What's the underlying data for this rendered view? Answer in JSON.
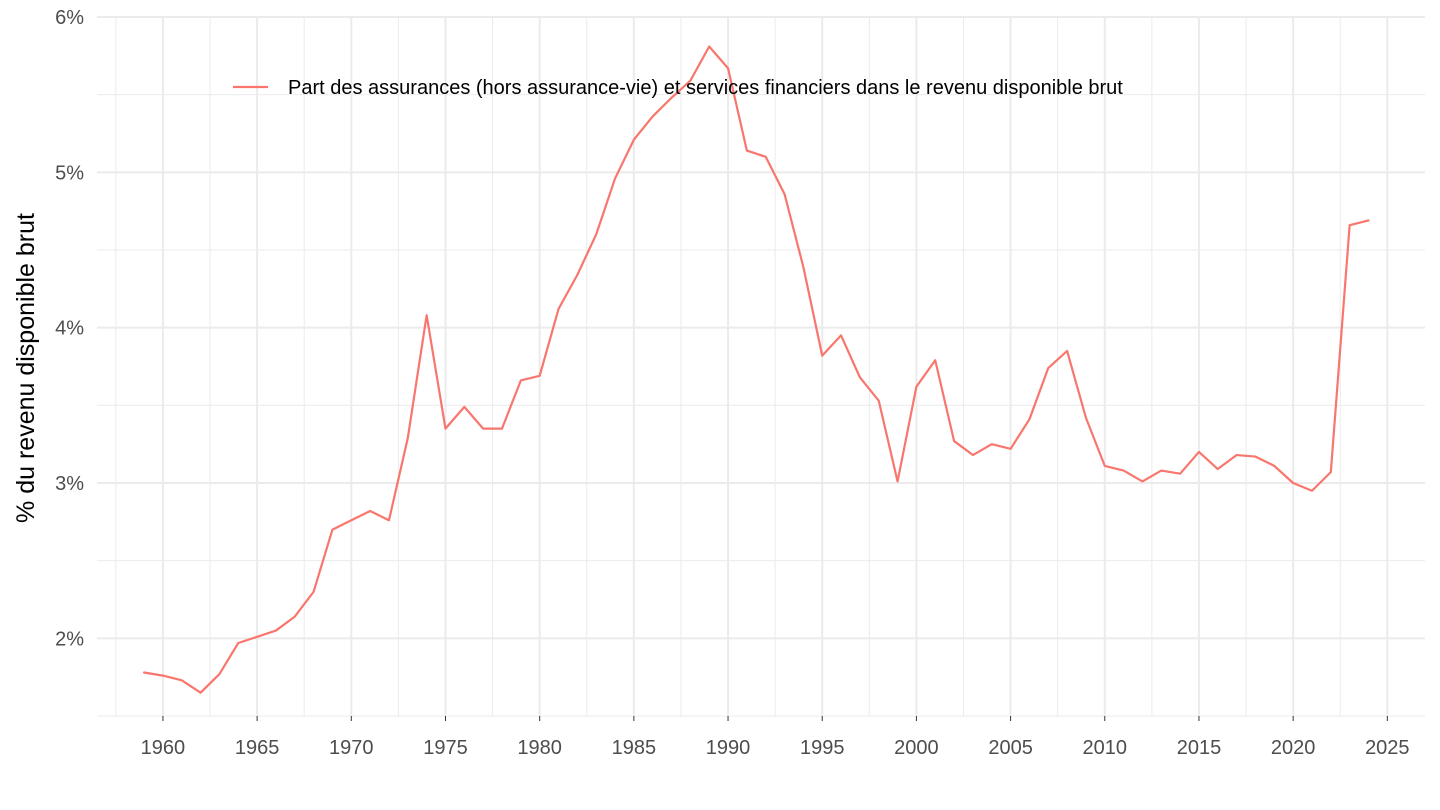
{
  "chart_data": {
    "type": "line",
    "title": "",
    "xlabel": "",
    "ylabel": "% du revenu disponible brut",
    "xlim": [
      1956.5,
      2027
    ],
    "ylim": [
      1.5,
      6.0
    ],
    "x_ticks": [
      1960,
      1965,
      1970,
      1975,
      1980,
      1985,
      1990,
      1995,
      2000,
      2005,
      2010,
      2015,
      2020,
      2025
    ],
    "x_tick_labels": [
      "1960",
      "1965",
      "1970",
      "1975",
      "1980",
      "1985",
      "1990",
      "1995",
      "2000",
      "2005",
      "2010",
      "2015",
      "2020",
      "2025"
    ],
    "y_ticks": [
      2,
      3,
      4,
      5,
      6
    ],
    "y_tick_labels": [
      "2%",
      "3%",
      "4%",
      "5%",
      "6%"
    ],
    "grid": true,
    "legend_position": "top",
    "colors": {
      "series": "#f8766d",
      "grid": "#ebebeb",
      "tick_text": "#4d4d4d"
    },
    "series": [
      {
        "name": "Part des assurances (hors assurance-vie) et services financiers dans le revenu disponible brut",
        "x": [
          1959,
          1960,
          1961,
          1962,
          1963,
          1964,
          1965,
          1966,
          1967,
          1968,
          1969,
          1970,
          1971,
          1972,
          1973,
          1974,
          1975,
          1976,
          1977,
          1978,
          1979,
          1980,
          1981,
          1982,
          1983,
          1984,
          1985,
          1986,
          1987,
          1988,
          1989,
          1990,
          1991,
          1992,
          1993,
          1994,
          1995,
          1996,
          1997,
          1998,
          1999,
          2000,
          2001,
          2002,
          2003,
          2004,
          2005,
          2006,
          2007,
          2008,
          2009,
          2010,
          2011,
          2012,
          2013,
          2014,
          2015,
          2016,
          2017,
          2018,
          2019,
          2020,
          2021,
          2022,
          2023,
          2024
        ],
        "values": [
          1.78,
          1.76,
          1.73,
          1.65,
          1.77,
          1.97,
          2.01,
          2.05,
          2.14,
          2.3,
          2.7,
          2.76,
          2.82,
          2.76,
          3.29,
          4.08,
          3.35,
          3.49,
          3.35,
          3.35,
          3.66,
          3.69,
          4.12,
          4.34,
          4.6,
          4.96,
          5.21,
          5.36,
          5.48,
          5.59,
          5.81,
          5.67,
          5.14,
          5.1,
          4.86,
          4.39,
          3.82,
          3.95,
          3.68,
          3.53,
          3.01,
          3.62,
          3.79,
          3.27,
          3.18,
          3.25,
          3.22,
          3.41,
          3.74,
          3.85,
          3.42,
          3.11,
          3.08,
          3.01,
          3.08,
          3.06,
          3.2,
          3.09,
          3.18,
          3.17,
          3.11,
          3.0,
          2.95,
          3.07,
          4.66,
          4.69
        ]
      }
    ]
  }
}
